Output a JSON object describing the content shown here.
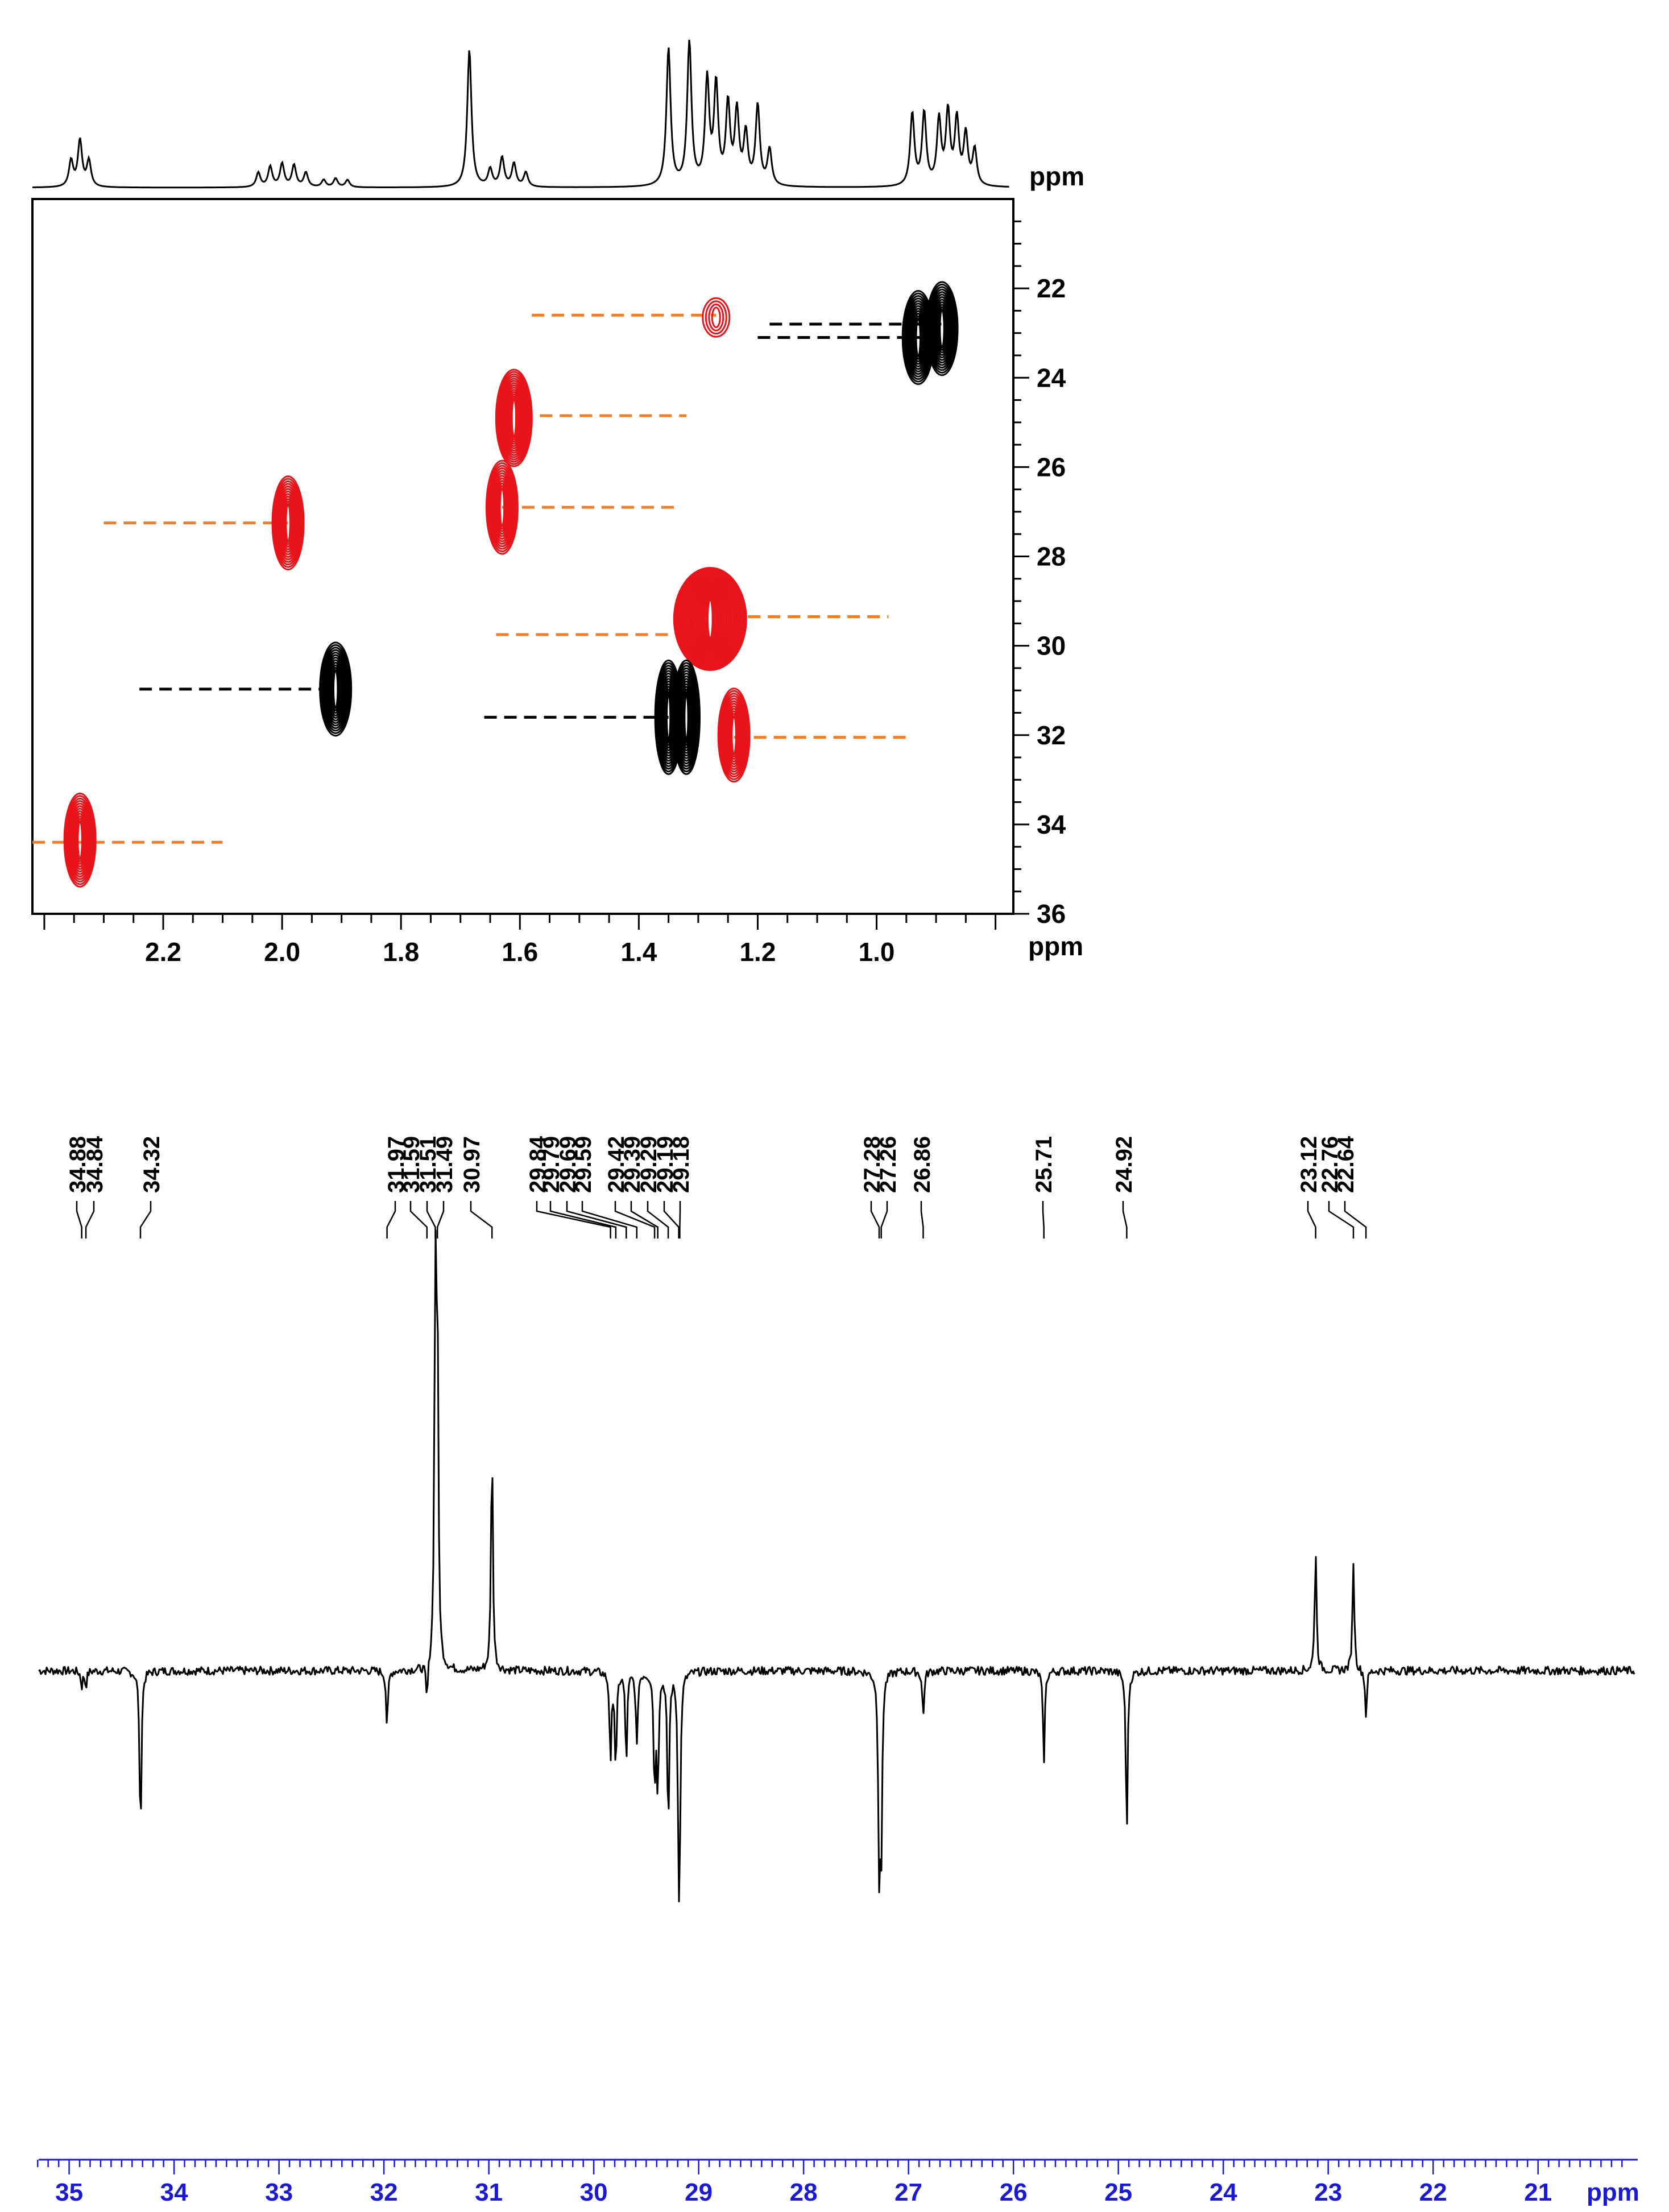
{
  "chart_data": [
    {
      "type": "scatter",
      "subtype": "2D HSQC contour plot with 1H projection",
      "x_axis": {
        "label": "ppm",
        "range": [
          2.42,
          0.77
        ],
        "reversed": true,
        "ticks": [
          "2.2",
          "2.0",
          "1.8",
          "1.6",
          "1.4",
          "1.2",
          "1.0"
        ]
      },
      "y_axis": {
        "label": "ppm",
        "range": [
          20.0,
          36.0
        ],
        "side": "right",
        "ticks": [
          "22",
          "24",
          "26",
          "28",
          "30",
          "32",
          "34",
          "36"
        ]
      },
      "top_projection": {
        "label": "ppm"
      },
      "colors": {
        "positive": "#e8141a",
        "negative": "#000000",
        "guide_orange": "#ef7d2a",
        "guide_black": "#000000"
      },
      "cross_peaks": [
        {
          "h": 2.34,
          "c": 34.35,
          "color": "red",
          "sign": "CH2"
        },
        {
          "h": 1.99,
          "c": 27.25,
          "color": "red",
          "sign": "CH2"
        },
        {
          "h": 1.91,
          "c": 30.97,
          "color": "black",
          "sign": "CH/CH3"
        },
        {
          "h": 1.61,
          "c": 24.9,
          "color": "red",
          "sign": "CH2"
        },
        {
          "h": 1.63,
          "c": 26.9,
          "color": "red",
          "sign": "CH2"
        },
        {
          "h": 1.27,
          "c": 22.65,
          "color": "red",
          "sign": "CH2"
        },
        {
          "h": 1.28,
          "c": 29.4,
          "color": "red",
          "sign": "CH2"
        },
        {
          "h": 1.35,
          "c": 31.6,
          "color": "black",
          "sign": "CH/CH3"
        },
        {
          "h": 1.32,
          "c": 31.6,
          "color": "black",
          "sign": "CH/CH3"
        },
        {
          "h": 1.24,
          "c": 32.0,
          "color": "red",
          "sign": "CH2"
        },
        {
          "h": 0.93,
          "c": 23.1,
          "color": "black",
          "sign": "CH/CH3"
        },
        {
          "h": 0.89,
          "c": 22.9,
          "color": "black",
          "sign": "CH/CH3"
        }
      ],
      "guide_lines": [
        {
          "c": 22.6,
          "h_from": 1.58,
          "h_to": 1.27,
          "color": "orange"
        },
        {
          "c": 22.8,
          "h_from": 1.18,
          "h_to": 0.88,
          "color": "black"
        },
        {
          "c": 23.1,
          "h_from": 1.2,
          "h_to": 0.91,
          "color": "black"
        },
        {
          "c": 24.85,
          "h_from": 1.6,
          "h_to": 1.32,
          "color": "orange"
        },
        {
          "c": 26.9,
          "h_from": 1.63,
          "h_to": 1.34,
          "color": "orange"
        },
        {
          "c": 27.25,
          "h_from": 2.3,
          "h_to": 1.99,
          "color": "orange"
        },
        {
          "c": 29.35,
          "h_from": 1.25,
          "h_to": 0.98,
          "color": "orange"
        },
        {
          "c": 29.75,
          "h_from": 1.64,
          "h_to": 1.3,
          "color": "orange"
        },
        {
          "c": 30.97,
          "h_from": 2.24,
          "h_to": 1.91,
          "color": "black"
        },
        {
          "c": 31.6,
          "h_from": 1.66,
          "h_to": 1.35,
          "color": "black"
        },
        {
          "c": 32.05,
          "h_from": 1.24,
          "h_to": 0.94,
          "color": "orange"
        },
        {
          "c": 34.4,
          "h_from": 2.42,
          "h_to": 2.1,
          "color": "orange"
        }
      ],
      "projection_peaks": [
        {
          "h": 2.355,
          "height": 0.18
        },
        {
          "h": 2.34,
          "height": 0.32
        },
        {
          "h": 2.325,
          "height": 0.18
        },
        {
          "h": 2.04,
          "height": 0.1
        },
        {
          "h": 2.02,
          "height": 0.14
        },
        {
          "h": 2.0,
          "height": 0.16
        },
        {
          "h": 1.98,
          "height": 0.15
        },
        {
          "h": 1.96,
          "height": 0.1
        },
        {
          "h": 1.93,
          "height": 0.05
        },
        {
          "h": 1.91,
          "height": 0.06
        },
        {
          "h": 1.89,
          "height": 0.05
        },
        {
          "h": 1.685,
          "height": 0.95
        },
        {
          "h": 1.65,
          "height": 0.12
        },
        {
          "h": 1.63,
          "height": 0.2
        },
        {
          "h": 1.61,
          "height": 0.16
        },
        {
          "h": 1.59,
          "height": 0.1
        },
        {
          "h": 1.35,
          "height": 0.95
        },
        {
          "h": 1.315,
          "height": 1.0
        },
        {
          "h": 1.285,
          "height": 0.72
        },
        {
          "h": 1.27,
          "height": 0.68
        },
        {
          "h": 1.25,
          "height": 0.55
        },
        {
          "h": 1.235,
          "height": 0.5
        },
        {
          "h": 1.22,
          "height": 0.35
        },
        {
          "h": 1.2,
          "height": 0.55
        },
        {
          "h": 1.18,
          "height": 0.25
        },
        {
          "h": 0.94,
          "height": 0.5
        },
        {
          "h": 0.92,
          "height": 0.5
        },
        {
          "h": 0.895,
          "height": 0.45
        },
        {
          "h": 0.88,
          "height": 0.5
        },
        {
          "h": 0.865,
          "height": 0.45
        },
        {
          "h": 0.85,
          "height": 0.35
        },
        {
          "h": 0.835,
          "height": 0.25
        }
      ]
    },
    {
      "type": "line",
      "subtype": "13C DEPT-135 spectrum",
      "x_axis": {
        "label": "ppm",
        "range": [
          35.35,
          20.05
        ],
        "reversed": true,
        "ticks": [
          "35",
          "34",
          "33",
          "32",
          "31",
          "30",
          "29",
          "28",
          "27",
          "26",
          "25",
          "24",
          "23",
          "22",
          "21"
        ]
      },
      "peak_labels": [
        "34.88",
        "34.84",
        "34.32",
        "31.97",
        "31.59",
        "31.51",
        "31.49",
        "30.97",
        "29.84",
        "29.79",
        "29.69",
        "29.59",
        "29.42",
        "29.39",
        "29.29",
        "29.19",
        "29.18",
        "27.28",
        "27.26",
        "26.86",
        "25.71",
        "24.92",
        "23.12",
        "22.76",
        "22.64"
      ],
      "peaks": [
        {
          "ppm": 34.88,
          "intensity": -0.04
        },
        {
          "ppm": 34.84,
          "intensity": -0.04
        },
        {
          "ppm": 34.32,
          "intensity": -0.44
        },
        {
          "ppm": 31.97,
          "intensity": -0.15
        },
        {
          "ppm": 31.59,
          "intensity": -0.1
        },
        {
          "ppm": 31.51,
          "intensity": 1.0
        },
        {
          "ppm": 31.49,
          "intensity": 0.85
        },
        {
          "ppm": 30.97,
          "intensity": 0.6
        },
        {
          "ppm": 29.84,
          "intensity": -0.24
        },
        {
          "ppm": 29.79,
          "intensity": -0.26
        },
        {
          "ppm": 29.69,
          "intensity": -0.24
        },
        {
          "ppm": 29.59,
          "intensity": -0.2
        },
        {
          "ppm": 29.42,
          "intensity": -0.3
        },
        {
          "ppm": 29.39,
          "intensity": -0.3
        },
        {
          "ppm": 29.29,
          "intensity": -0.42
        },
        {
          "ppm": 29.19,
          "intensity": -0.42
        },
        {
          "ppm": 29.18,
          "intensity": -0.3
        },
        {
          "ppm": 27.28,
          "intensity": -0.48
        },
        {
          "ppm": 27.26,
          "intensity": -0.46
        },
        {
          "ppm": 26.86,
          "intensity": -0.12
        },
        {
          "ppm": 25.71,
          "intensity": -0.24
        },
        {
          "ppm": 24.92,
          "intensity": -0.43
        },
        {
          "ppm": 23.12,
          "intensity": 0.32
        },
        {
          "ppm": 22.76,
          "intensity": 0.29
        },
        {
          "ppm": 22.64,
          "intensity": -0.12
        }
      ]
    }
  ]
}
